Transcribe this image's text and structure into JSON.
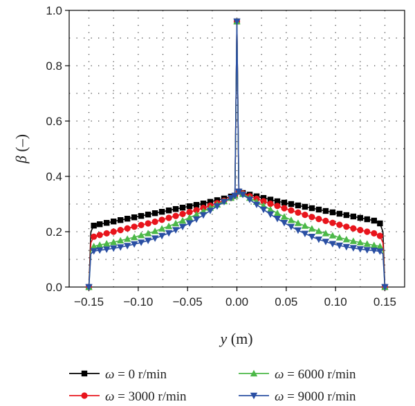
{
  "chart_data": {
    "type": "line",
    "xlabel": "y (m)",
    "ylabel": "β (–)",
    "xlim": [
      -0.17,
      0.17
    ],
    "ylim": [
      0,
      1.0
    ],
    "xticks": [
      -0.15,
      -0.1,
      -0.05,
      0.0,
      0.05,
      0.1,
      0.15
    ],
    "xtick_labels": [
      "−0.15",
      "−0.10",
      "−0.05",
      "0.00",
      "0.05",
      "0.10",
      "0.15"
    ],
    "yticks": [
      0.0,
      0.2,
      0.4,
      0.6,
      0.8,
      1.0
    ],
    "ytick_labels": [
      "0.0",
      "0.2",
      "0.4",
      "0.6",
      "0.8",
      "1.0"
    ],
    "grid": "dotted",
    "legend_position": "bottom",
    "series": [
      {
        "name": "ω = 0 r/min",
        "color": "#000000",
        "marker": "square",
        "x": [
          -0.15,
          -0.148,
          -0.145,
          -0.139,
          -0.132,
          -0.125,
          -0.118,
          -0.111,
          -0.104,
          -0.097,
          -0.09,
          -0.083,
          -0.076,
          -0.069,
          -0.062,
          -0.055,
          -0.048,
          -0.041,
          -0.034,
          -0.027,
          -0.02,
          -0.013,
          -0.006,
          -0.002,
          0.0,
          0.002,
          0.006,
          0.013,
          0.02,
          0.027,
          0.034,
          0.041,
          0.048,
          0.055,
          0.062,
          0.069,
          0.076,
          0.083,
          0.09,
          0.097,
          0.104,
          0.111,
          0.118,
          0.125,
          0.132,
          0.139,
          0.145,
          0.148,
          0.15
        ],
        "y": [
          0.0,
          0.2,
          0.222,
          0.227,
          0.232,
          0.237,
          0.242,
          0.247,
          0.252,
          0.257,
          0.262,
          0.267,
          0.272,
          0.277,
          0.282,
          0.287,
          0.292,
          0.297,
          0.302,
          0.308,
          0.314,
          0.32,
          0.327,
          0.33,
          0.96,
          0.345,
          0.34,
          0.334,
          0.328,
          0.322,
          0.316,
          0.31,
          0.305,
          0.3,
          0.295,
          0.29,
          0.285,
          0.28,
          0.275,
          0.27,
          0.265,
          0.26,
          0.255,
          0.25,
          0.245,
          0.24,
          0.23,
          0.2,
          0.0
        ]
      },
      {
        "name": "ω = 3000 r/min",
        "color": "#e8141c",
        "marker": "circle",
        "x": [
          -0.15,
          -0.148,
          -0.145,
          -0.139,
          -0.132,
          -0.125,
          -0.118,
          -0.111,
          -0.104,
          -0.097,
          -0.09,
          -0.083,
          -0.076,
          -0.069,
          -0.062,
          -0.055,
          -0.048,
          -0.041,
          -0.034,
          -0.027,
          -0.02,
          -0.013,
          -0.006,
          -0.002,
          0.0,
          0.002,
          0.006,
          0.013,
          0.02,
          0.027,
          0.034,
          0.041,
          0.048,
          0.055,
          0.062,
          0.069,
          0.076,
          0.083,
          0.09,
          0.097,
          0.104,
          0.111,
          0.118,
          0.125,
          0.132,
          0.139,
          0.145,
          0.148,
          0.15
        ],
        "y": [
          0.0,
          0.16,
          0.182,
          0.188,
          0.194,
          0.2,
          0.206,
          0.212,
          0.218,
          0.224,
          0.23,
          0.236,
          0.243,
          0.25,
          0.257,
          0.264,
          0.271,
          0.278,
          0.286,
          0.294,
          0.303,
          0.312,
          0.322,
          0.33,
          0.96,
          0.345,
          0.338,
          0.328,
          0.319,
          0.31,
          0.301,
          0.293,
          0.285,
          0.277,
          0.269,
          0.261,
          0.253,
          0.246,
          0.239,
          0.232,
          0.225,
          0.218,
          0.212,
          0.206,
          0.2,
          0.194,
          0.185,
          0.16,
          0.0
        ]
      },
      {
        "name": "ω = 6000 r/min",
        "color": "#4cb848",
        "marker": "triangle-up",
        "x": [
          -0.15,
          -0.148,
          -0.145,
          -0.139,
          -0.132,
          -0.125,
          -0.118,
          -0.111,
          -0.104,
          -0.097,
          -0.09,
          -0.083,
          -0.076,
          -0.069,
          -0.062,
          -0.055,
          -0.048,
          -0.041,
          -0.034,
          -0.027,
          -0.02,
          -0.013,
          -0.006,
          -0.002,
          0.0,
          0.002,
          0.006,
          0.013,
          0.02,
          0.027,
          0.034,
          0.041,
          0.048,
          0.055,
          0.062,
          0.069,
          0.076,
          0.083,
          0.09,
          0.097,
          0.104,
          0.111,
          0.118,
          0.125,
          0.132,
          0.139,
          0.145,
          0.148,
          0.15
        ],
        "y": [
          0.0,
          0.13,
          0.147,
          0.152,
          0.157,
          0.162,
          0.168,
          0.174,
          0.18,
          0.187,
          0.194,
          0.202,
          0.211,
          0.22,
          0.23,
          0.24,
          0.251,
          0.262,
          0.274,
          0.286,
          0.298,
          0.31,
          0.322,
          0.33,
          0.96,
          0.345,
          0.336,
          0.322,
          0.308,
          0.294,
          0.28,
          0.267,
          0.254,
          0.242,
          0.231,
          0.221,
          0.211,
          0.202,
          0.194,
          0.186,
          0.179,
          0.172,
          0.166,
          0.161,
          0.156,
          0.151,
          0.147,
          0.13,
          0.0
        ]
      },
      {
        "name": "ω = 9000 r/min",
        "color": "#2a4fa3",
        "marker": "triangle-down",
        "x": [
          -0.15,
          -0.148,
          -0.145,
          -0.139,
          -0.132,
          -0.125,
          -0.118,
          -0.111,
          -0.104,
          -0.097,
          -0.09,
          -0.083,
          -0.076,
          -0.069,
          -0.062,
          -0.055,
          -0.048,
          -0.041,
          -0.034,
          -0.027,
          -0.02,
          -0.013,
          -0.006,
          -0.002,
          0.0,
          0.002,
          0.006,
          0.013,
          0.02,
          0.027,
          0.034,
          0.041,
          0.048,
          0.055,
          0.062,
          0.069,
          0.076,
          0.083,
          0.09,
          0.097,
          0.104,
          0.111,
          0.118,
          0.125,
          0.132,
          0.139,
          0.145,
          0.148,
          0.15
        ],
        "y": [
          0.0,
          0.12,
          0.13,
          0.133,
          0.136,
          0.14,
          0.144,
          0.149,
          0.155,
          0.161,
          0.168,
          0.176,
          0.185,
          0.195,
          0.206,
          0.218,
          0.231,
          0.245,
          0.26,
          0.276,
          0.292,
          0.308,
          0.322,
          0.33,
          0.96,
          0.345,
          0.334,
          0.316,
          0.298,
          0.28,
          0.263,
          0.247,
          0.232,
          0.218,
          0.205,
          0.193,
          0.182,
          0.172,
          0.164,
          0.156,
          0.15,
          0.145,
          0.141,
          0.137,
          0.134,
          0.132,
          0.129,
          0.12,
          0.0
        ]
      }
    ]
  }
}
